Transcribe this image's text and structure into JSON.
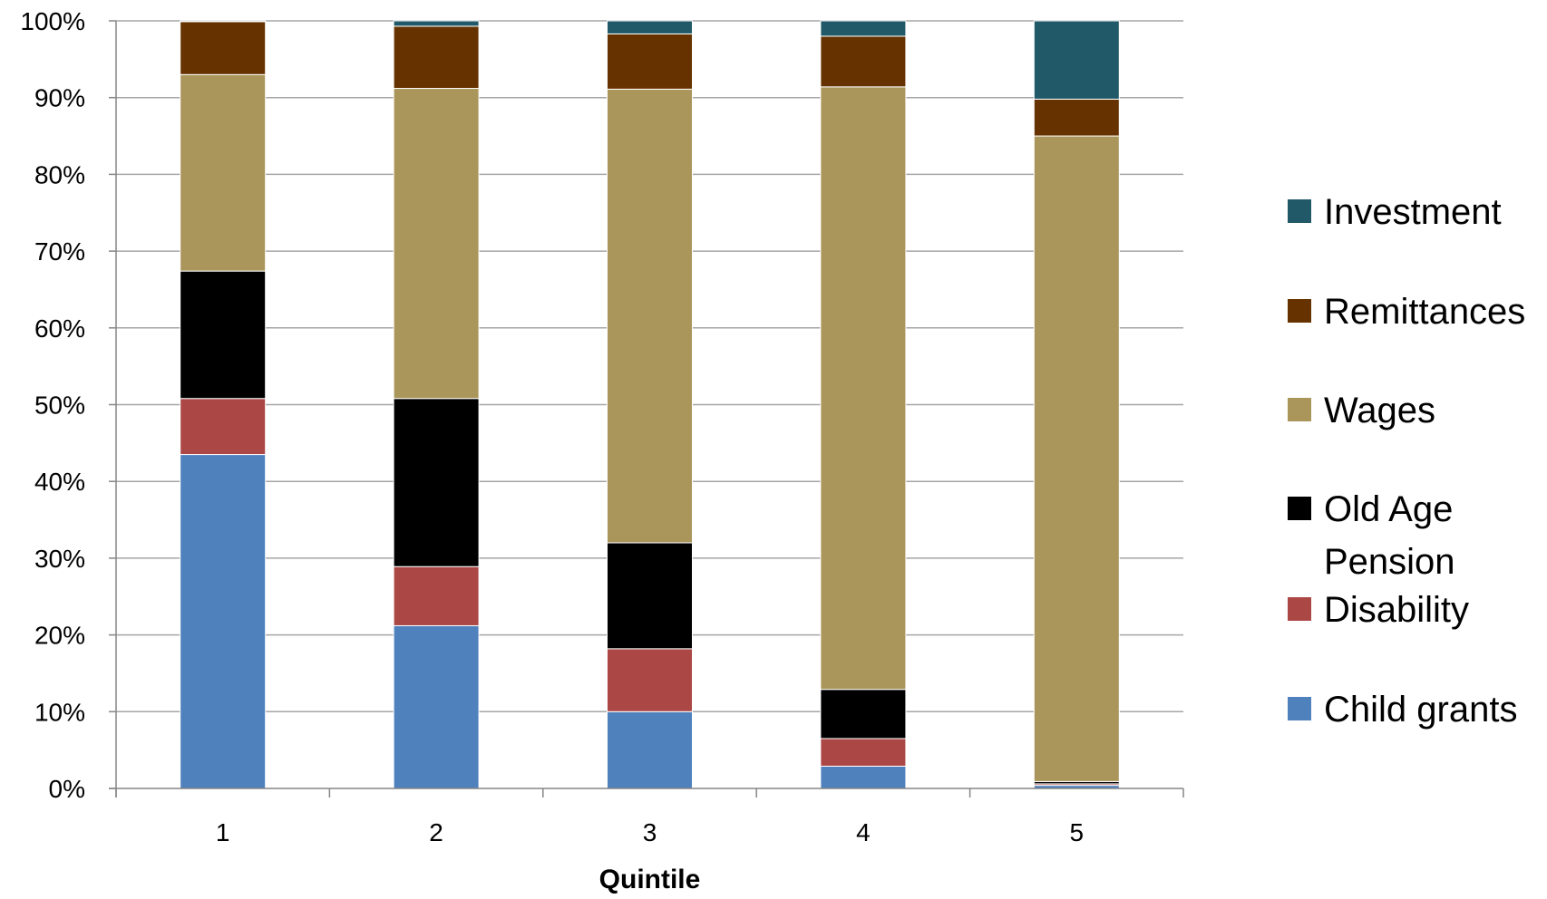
{
  "chart_data": {
    "type": "bar",
    "stacked": true,
    "normalized": true,
    "xlabel": "Quintile",
    "ylabel": "",
    "ylim": [
      0,
      100
    ],
    "grid": true,
    "legend_position": "right",
    "categories": [
      "1",
      "2",
      "3",
      "4",
      "5"
    ],
    "y_ticks": [
      "0%",
      "10%",
      "20%",
      "30%",
      "40%",
      "50%",
      "60%",
      "70%",
      "80%",
      "90%",
      "100%"
    ],
    "series": [
      {
        "name": "Child grants",
        "color": "#4f81bd",
        "values": [
          43.5,
          21.2,
          10.0,
          2.9,
          0.4
        ]
      },
      {
        "name": "Disability",
        "color": "#ab4745",
        "values": [
          7.3,
          7.7,
          8.2,
          3.6,
          0.2
        ]
      },
      {
        "name": "Old Age Pension",
        "color": "#000000",
        "values": [
          16.6,
          21.9,
          13.8,
          6.4,
          0.3
        ]
      },
      {
        "name": "Wages",
        "color": "#aa955b",
        "values": [
          25.6,
          40.4,
          59.1,
          78.5,
          84.1
        ]
      },
      {
        "name": "Remittances",
        "color": "#663300",
        "values": [
          6.9,
          8.1,
          7.2,
          6.6,
          4.8
        ]
      },
      {
        "name": "Investment",
        "color": "#215968",
        "values": [
          0.1,
          0.7,
          1.7,
          2.0,
          10.2
        ]
      }
    ]
  },
  "legend": {
    "items": [
      {
        "label": "Investment",
        "color": "#215968"
      },
      {
        "label": "Remittances",
        "color": "#663300"
      },
      {
        "label": "Wages",
        "color": "#aa955b"
      },
      {
        "label_lines": [
          "Old Age",
          "Pension"
        ],
        "color": "#000000"
      },
      {
        "label": "Disability",
        "color": "#ab4745"
      },
      {
        "label": "Child grants",
        "color": "#4f81bd"
      }
    ]
  }
}
